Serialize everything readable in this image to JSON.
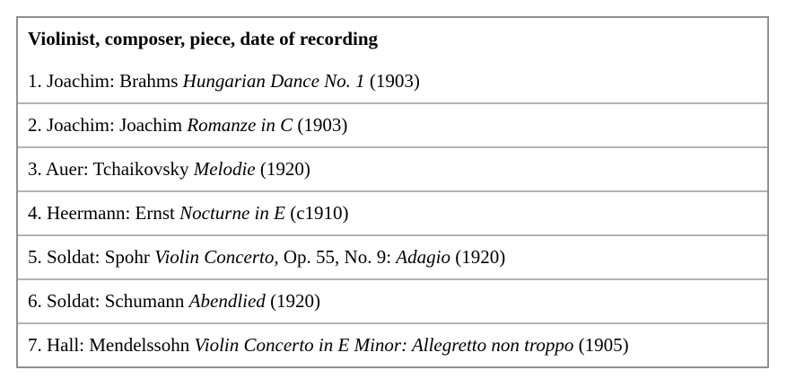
{
  "table": {
    "header": "Violinist, composer, piece, date of recording",
    "rows": [
      {
        "segments": [
          {
            "text": "1. Joachim: Brahms ",
            "italic": false
          },
          {
            "text": "Hungarian Dance No. 1",
            "italic": true
          },
          {
            "text": " (1903)",
            "italic": false
          }
        ]
      },
      {
        "segments": [
          {
            "text": "2. Joachim: Joachim ",
            "italic": false
          },
          {
            "text": "Romanze in C",
            "italic": true
          },
          {
            "text": " (1903)",
            "italic": false
          }
        ]
      },
      {
        "segments": [
          {
            "text": "3. Auer: Tchaikovsky ",
            "italic": false
          },
          {
            "text": "Melodie",
            "italic": true
          },
          {
            "text": " (1920)",
            "italic": false
          }
        ]
      },
      {
        "segments": [
          {
            "text": "4. Heermann: Ernst ",
            "italic": false
          },
          {
            "text": "Nocturne in E",
            "italic": true
          },
          {
            "text": " (c1910)",
            "italic": false
          }
        ]
      },
      {
        "segments": [
          {
            "text": "5. Soldat: Spohr ",
            "italic": false
          },
          {
            "text": "Violin Concerto",
            "italic": true
          },
          {
            "text": ", Op. 55, No. 9: ",
            "italic": false
          },
          {
            "text": "Adagio",
            "italic": true
          },
          {
            "text": " (1920)",
            "italic": false
          }
        ]
      },
      {
        "segments": [
          {
            "text": "6. Soldat: Schumann ",
            "italic": false
          },
          {
            "text": "Abendlied",
            "italic": true
          },
          {
            "text": " (1920)",
            "italic": false
          }
        ]
      },
      {
        "segments": [
          {
            "text": "7. Hall: Mendelssohn ",
            "italic": false
          },
          {
            "text": "Violin Concerto in E Minor: Allegretto non troppo",
            "italic": true
          },
          {
            "text": " (1905)",
            "italic": false
          }
        ]
      }
    ]
  },
  "colors": {
    "border_outer": "#909090",
    "border_inner": "#b3b3b3",
    "text": "#000000",
    "background": "#ffffff"
  }
}
